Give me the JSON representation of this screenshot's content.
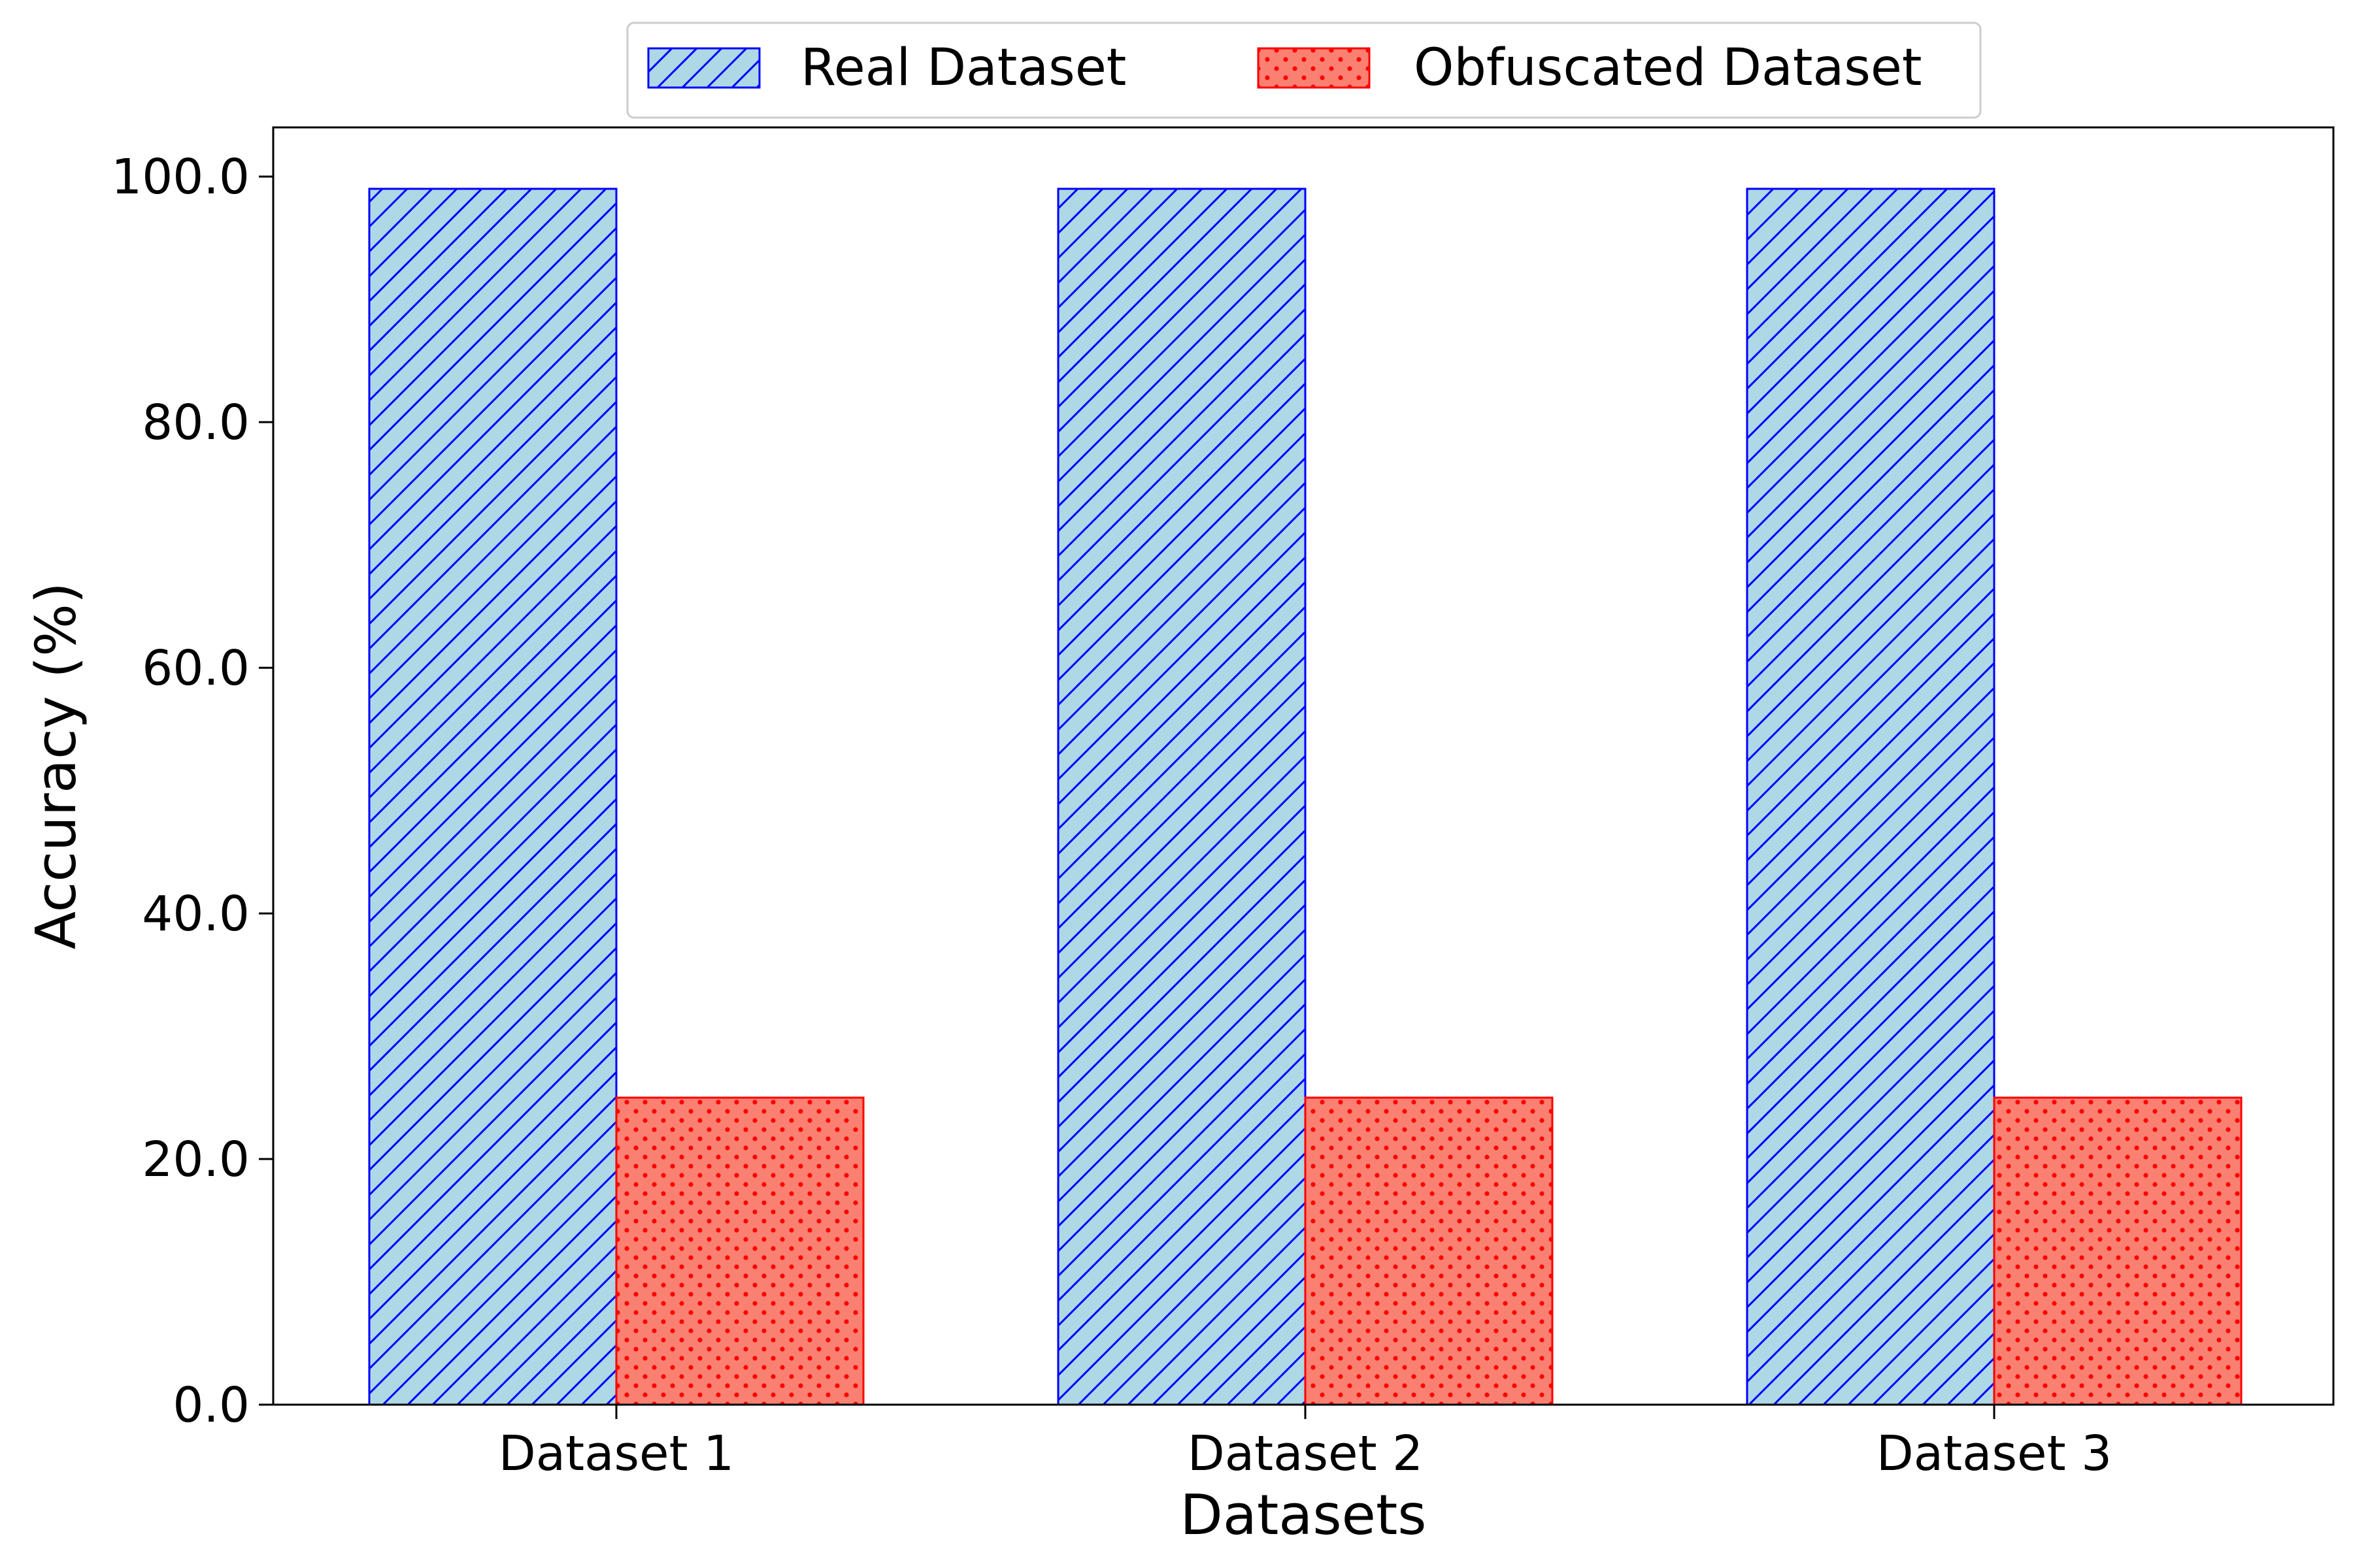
{
  "chart_data": {
    "type": "bar",
    "xlabel": "Datasets",
    "ylabel": "Accuracy (%)",
    "categories": [
      "Dataset 1",
      "Dataset 2",
      "Dataset 3"
    ],
    "series": [
      {
        "name": "Real Dataset",
        "values": [
          99.0,
          99.0,
          99.0
        ],
        "fill": "#add8e6",
        "edge": "#0000ff",
        "hatch": "diagonal"
      },
      {
        "name": "Obfuscated Dataset",
        "values": [
          25.0,
          25.0,
          25.0
        ],
        "fill": "#fa8072",
        "edge": "#ff0000",
        "hatch": "dots"
      }
    ],
    "ylim": [
      0,
      104
    ],
    "yticks": [
      0,
      20,
      40,
      60,
      80,
      100
    ],
    "ytick_labels": [
      "0.0",
      "20.0",
      "40.0",
      "60.0",
      "80.0",
      "100.0"
    ],
    "grid": false,
    "legend_position": "top-center"
  }
}
